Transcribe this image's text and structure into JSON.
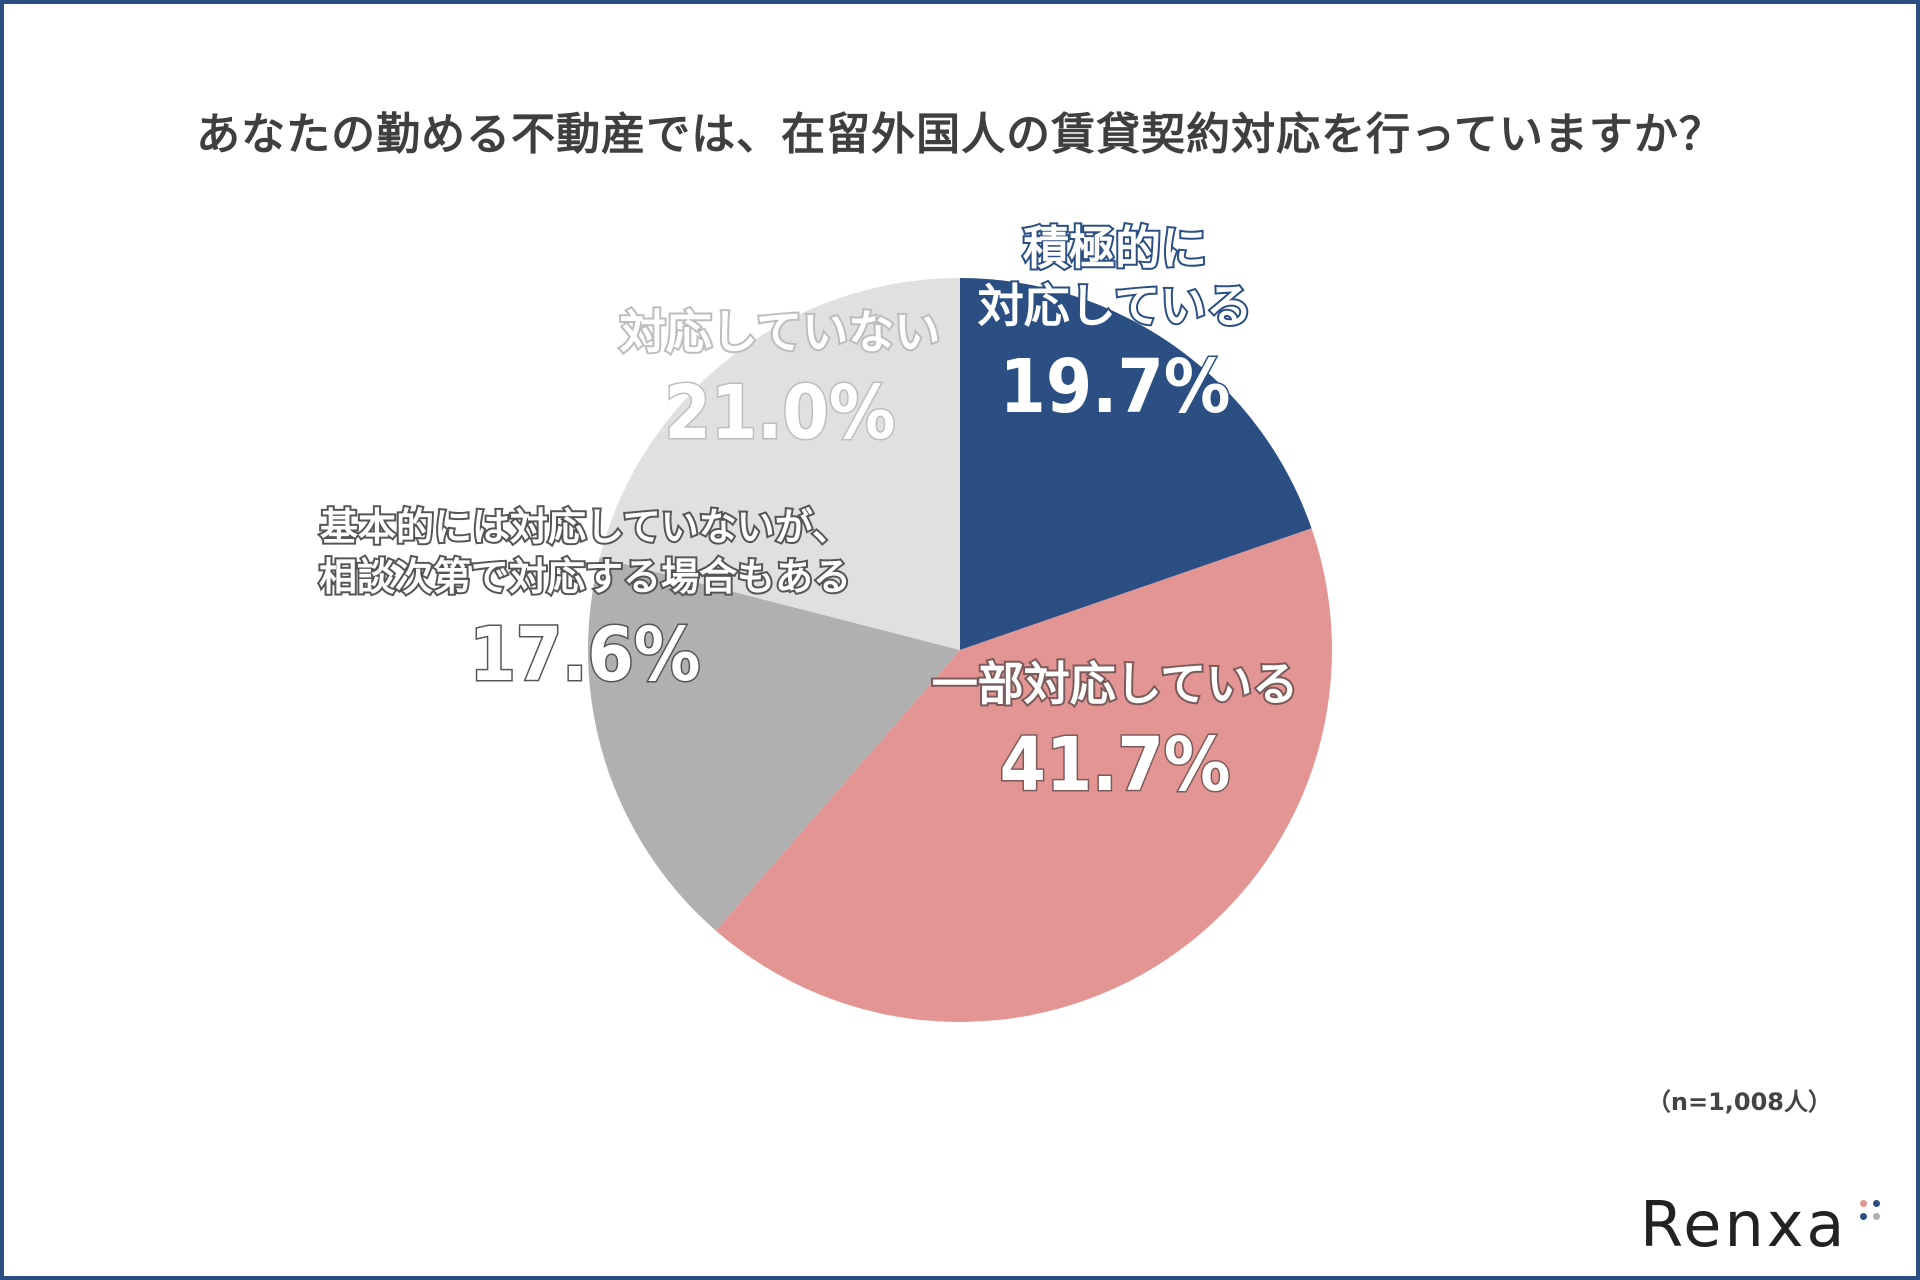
{
  "title": "あなたの勤める不動産では、在留外国人の賃貸契約対応を行っていますか？",
  "note": "（n=1,008人）",
  "logo": "Renxa",
  "chart_data": {
    "type": "pie",
    "title": "あなたの勤める不動産では、在留外国人の賃貸契約対応を行っていますか？",
    "start_angle_deg": 0,
    "direction": "clockwise",
    "slices": [
      {
        "label_lines": [
          "積極的に",
          "対応している"
        ],
        "value": 19.7,
        "value_label": "19.7%",
        "color": "#2b4f83"
      },
      {
        "label_lines": [
          "一部対応している"
        ],
        "value": 41.7,
        "value_label": "41.7%",
        "color": "#e29592"
      },
      {
        "label_lines": [
          "基本的には対応していないが、",
          "相談次第で対応する場合もある"
        ],
        "value": 17.6,
        "value_label": "17.6%",
        "color": "#b0b0b0"
      },
      {
        "label_lines": [
          "対応していない"
        ],
        "value": 21.0,
        "value_label": "21.0%",
        "color": "#e0e0e0"
      }
    ],
    "n": 1008
  }
}
